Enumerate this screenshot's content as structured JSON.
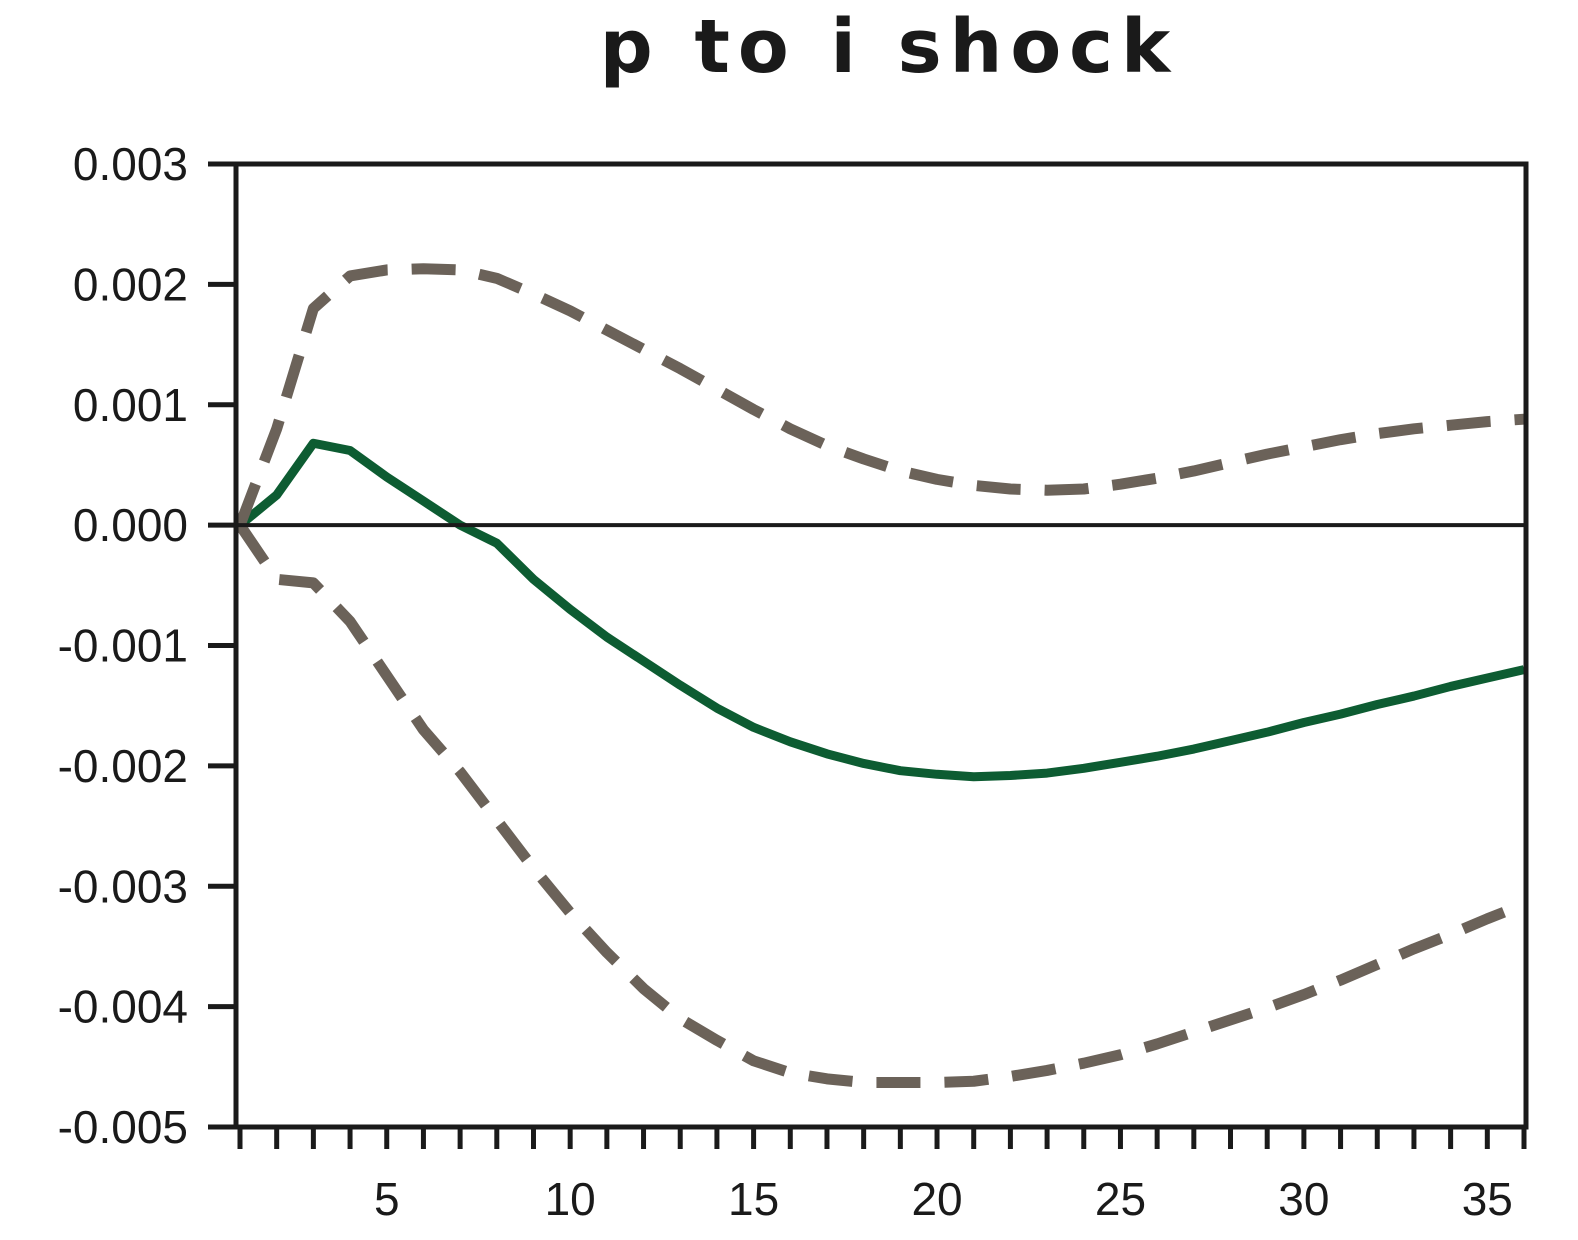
{
  "chart_data": {
    "type": "line",
    "title": "p to i shock",
    "xlabel": "",
    "ylabel": "",
    "xlim": [
      1,
      36
    ],
    "ylim": [
      -0.005,
      0.003
    ],
    "x_ticks": [
      "5",
      "10",
      "15",
      "20",
      "25",
      "30",
      "35"
    ],
    "y_ticks": [
      "0.003",
      "0.002",
      "0.001",
      "0.000",
      "-0.001",
      "-0.002",
      "-0.003",
      "-0.004",
      "-0.005"
    ],
    "grid": false,
    "legend": "none",
    "zero_line": true,
    "colors": {
      "response": "#0d5c32",
      "bands": "#6b6259",
      "axis": "#1a1a1a"
    },
    "x": [
      1,
      2,
      3,
      4,
      5,
      6,
      7,
      8,
      9,
      10,
      11,
      12,
      13,
      14,
      15,
      16,
      17,
      18,
      19,
      20,
      21,
      22,
      23,
      24,
      25,
      26,
      27,
      28,
      29,
      30,
      31,
      32,
      33,
      34,
      35,
      36
    ],
    "series": [
      {
        "style": "solid",
        "values": [
          0.0,
          0.00025,
          0.00068,
          0.00062,
          0.0004,
          0.0002,
          0.0,
          -0.00015,
          -0.00045,
          -0.0007,
          -0.00093,
          -0.00113,
          -0.00133,
          -0.00152,
          -0.00168,
          -0.0018,
          -0.0019,
          -0.00198,
          -0.00204,
          -0.00207,
          -0.00209,
          -0.00208,
          -0.00206,
          -0.00202,
          -0.00197,
          -0.00192,
          -0.00186,
          -0.00179,
          -0.00172,
          -0.00164,
          -0.00157,
          -0.00149,
          -0.00142,
          -0.00134,
          -0.00127,
          -0.0012
        ]
      },
      {
        "style": "dashed",
        "values": [
          0.0,
          0.0008,
          0.0018,
          0.00207,
          0.00212,
          0.00213,
          0.00212,
          0.00205,
          0.00192,
          0.00178,
          0.00162,
          0.00146,
          0.0013,
          0.00113,
          0.00096,
          0.0008,
          0.00066,
          0.00055,
          0.00045,
          0.00038,
          0.00033,
          0.0003,
          0.00029,
          0.0003,
          0.00034,
          0.00039,
          0.00045,
          0.00052,
          0.00059,
          0.00065,
          0.00071,
          0.00076,
          0.0008,
          0.00083,
          0.00086,
          0.00088
        ]
      },
      {
        "style": "dashed",
        "values": [
          0.0,
          -0.00045,
          -0.00048,
          -0.0008,
          -0.00125,
          -0.0017,
          -0.00205,
          -0.00245,
          -0.00285,
          -0.00322,
          -0.00355,
          -0.00385,
          -0.0041,
          -0.00428,
          -0.00445,
          -0.00455,
          -0.0046,
          -0.00463,
          -0.00463,
          -0.00463,
          -0.00462,
          -0.00458,
          -0.00453,
          -0.00447,
          -0.0044,
          -0.00431,
          -0.00421,
          -0.00411,
          -0.00401,
          -0.0039,
          -0.00378,
          -0.00365,
          -0.00352,
          -0.0034,
          -0.00327,
          -0.00315
        ]
      }
    ]
  }
}
